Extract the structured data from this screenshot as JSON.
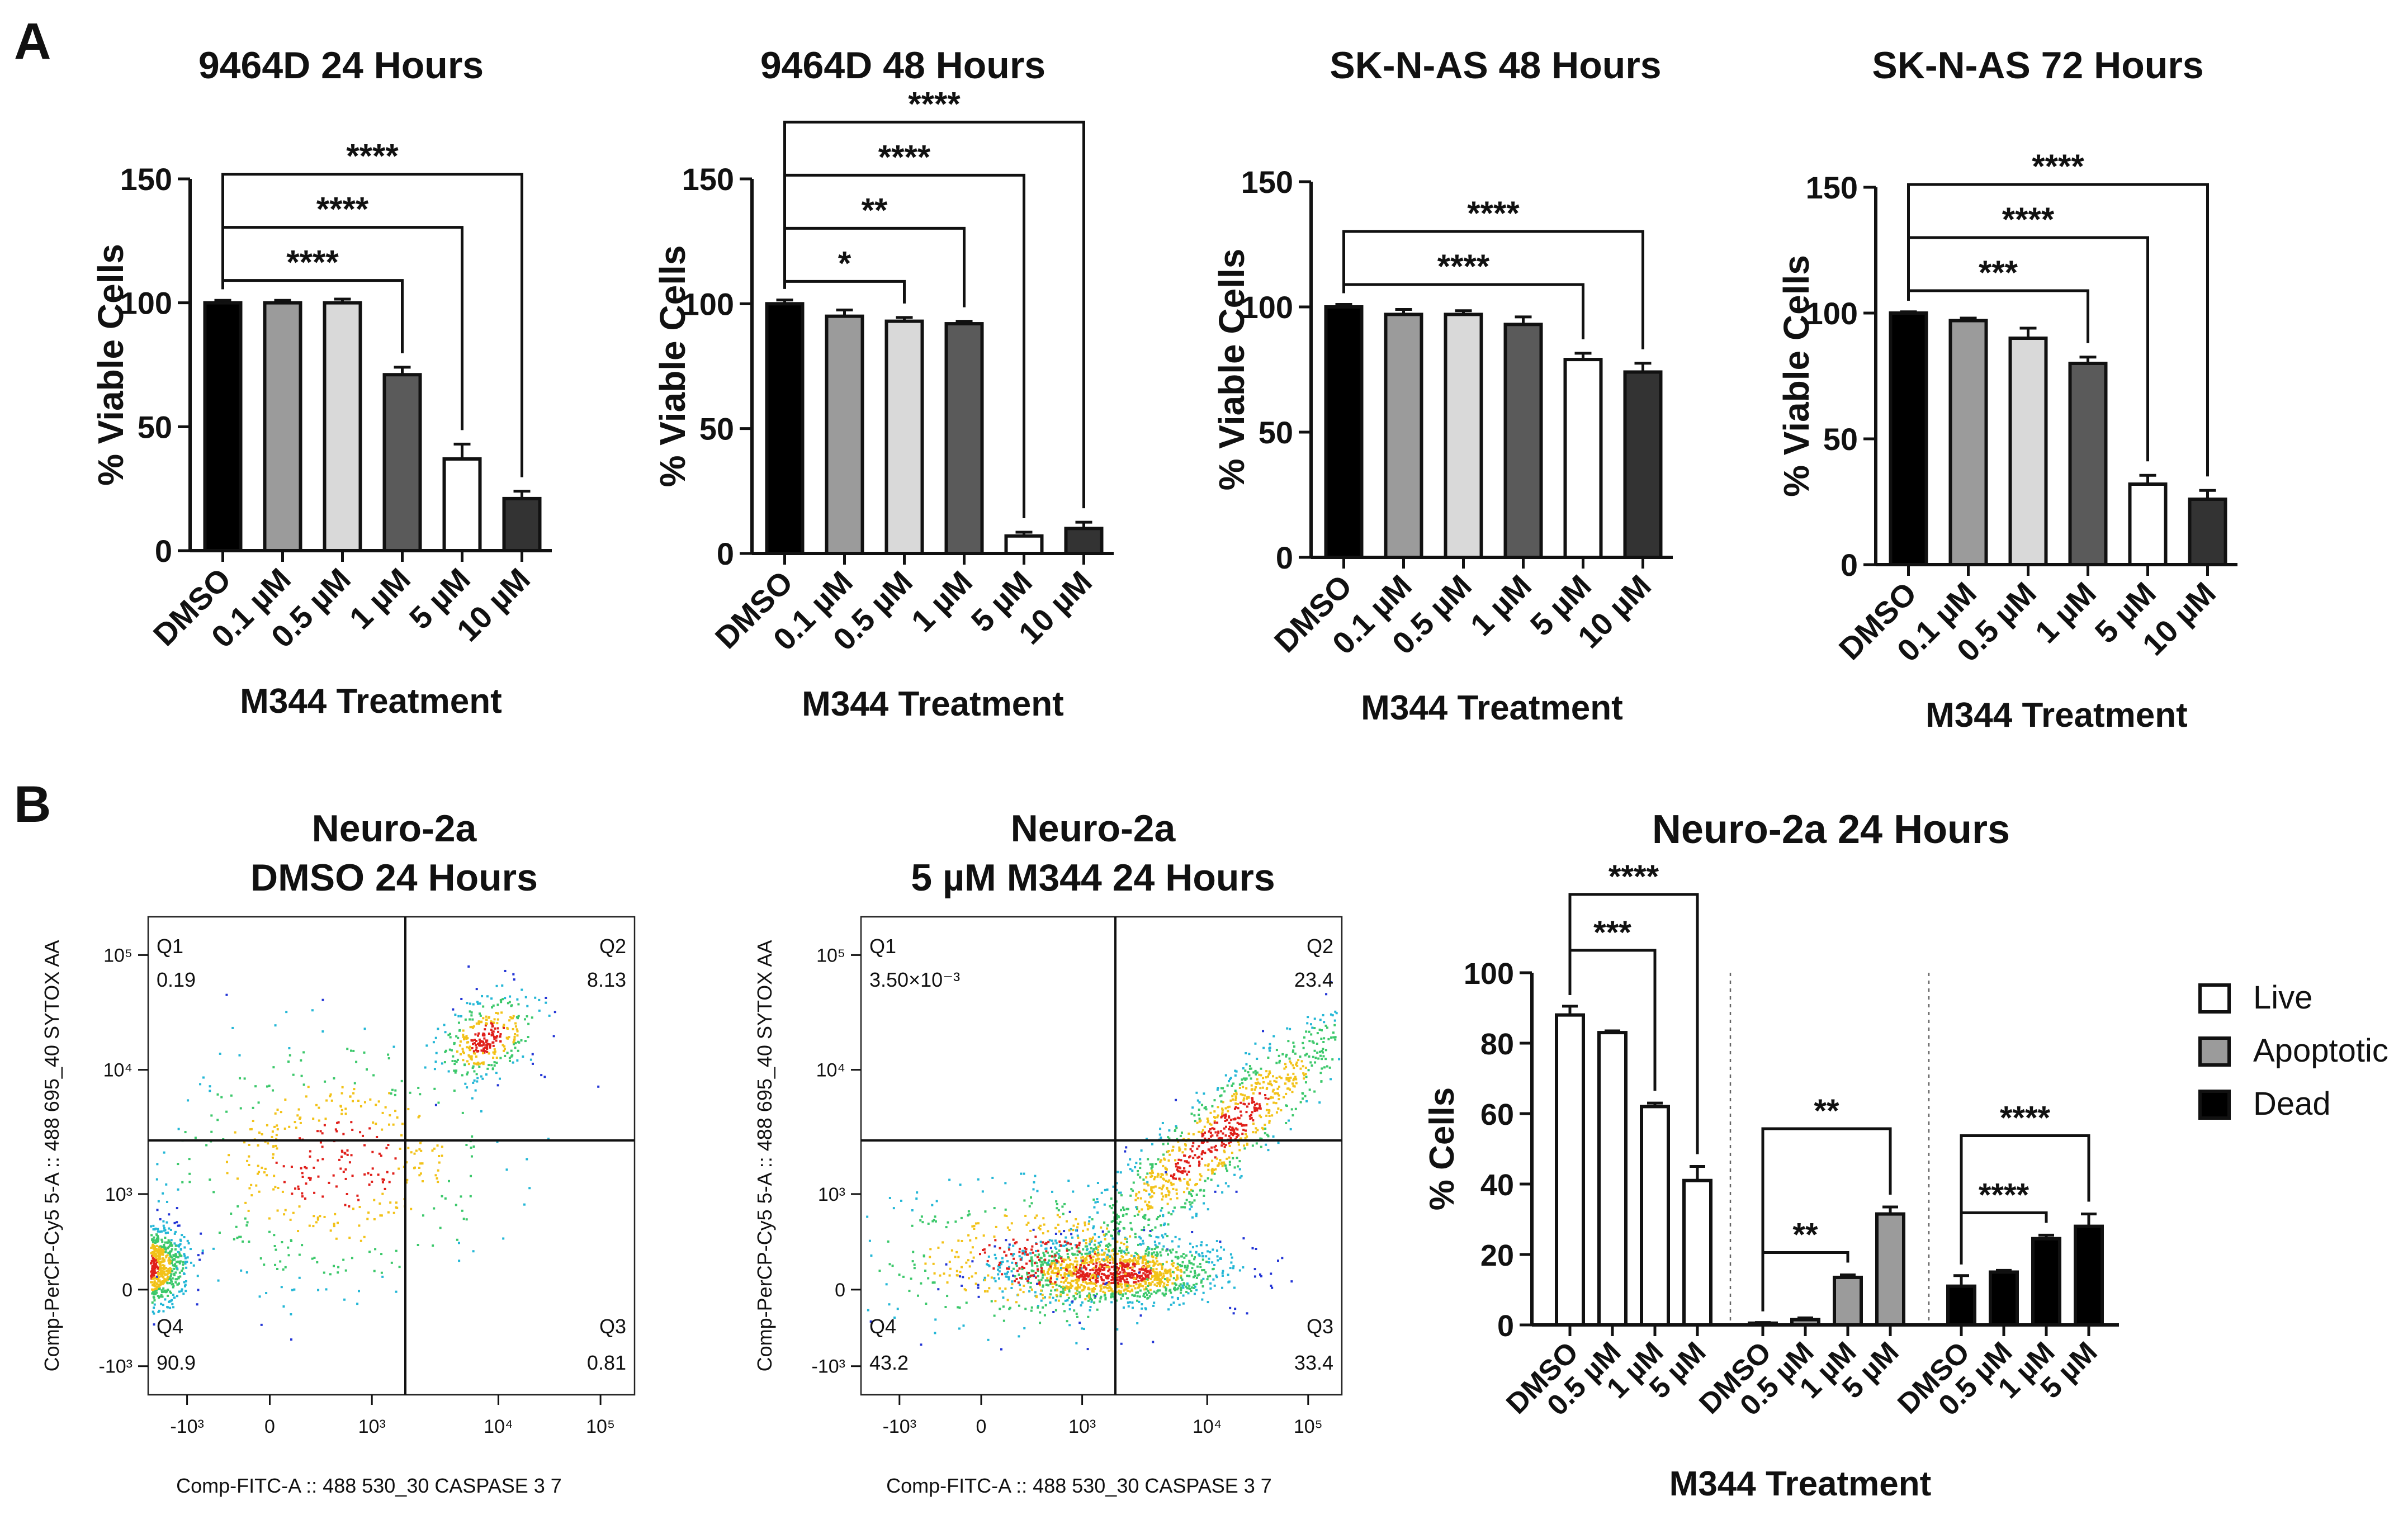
{
  "panel_labels": {
    "a": "A",
    "b": "B"
  },
  "colors": {
    "DMSO": "#000000",
    "0.1 µM": "#9b9b9b",
    "0.5 µM": "#d9d9d9",
    "1 µM": "#5a5a5a",
    "5 µM": "#ffffff",
    "10 µM": "#333333",
    "live": "#ffffff",
    "apoptotic": "#9b9b9b",
    "dead": "#000000"
  },
  "chart_data": [
    {
      "type": "bar",
      "title": "9464D 24 Hours",
      "xlabel": "M344 Treatment",
      "ylabel": "% Viable Cells",
      "ylim": [
        0,
        150
      ],
      "yticks": [
        0,
        50,
        100,
        150
      ],
      "categories": [
        "DMSO",
        "0.1 µM",
        "0.5 µM",
        "1 µM",
        "5 µM",
        "10 µM"
      ],
      "values": [
        100,
        100,
        100,
        71,
        37,
        21
      ],
      "errors": [
        1,
        1,
        1.5,
        3,
        6,
        3
      ],
      "significance": [
        {
          "from": 0,
          "to": 3,
          "label": "****"
        },
        {
          "from": 0,
          "to": 4,
          "label": "****"
        },
        {
          "from": 0,
          "to": 5,
          "label": "****"
        }
      ]
    },
    {
      "type": "bar",
      "title": "9464D 48 Hours",
      "xlabel": "M344 Treatment",
      "ylabel": "% Viable Cells",
      "ylim": [
        0,
        150
      ],
      "yticks": [
        0,
        50,
        100,
        150
      ],
      "categories": [
        "DMSO",
        "0.1 µM",
        "0.5 µM",
        "1 µM",
        "5 µM",
        "10 µM"
      ],
      "values": [
        100,
        95,
        93,
        92,
        7,
        10
      ],
      "errors": [
        1.5,
        2.5,
        1.5,
        1,
        1.5,
        2.5
      ],
      "significance": [
        {
          "from": 0,
          "to": 2,
          "label": "*"
        },
        {
          "from": 0,
          "to": 3,
          "label": "**"
        },
        {
          "from": 0,
          "to": 4,
          "label": "****"
        },
        {
          "from": 0,
          "to": 5,
          "label": "****"
        }
      ]
    },
    {
      "type": "bar",
      "title": "SK-N-AS 48 Hours",
      "xlabel": "M344 Treatment",
      "ylabel": "% Viable Cells",
      "ylim": [
        0,
        150
      ],
      "yticks": [
        0,
        50,
        100,
        150
      ],
      "categories": [
        "DMSO",
        "0.1 µM",
        "0.5 µM",
        "1 µM",
        "5 µM",
        "10 µM"
      ],
      "values": [
        100,
        97,
        97,
        93,
        79,
        74
      ],
      "errors": [
        1,
        2,
        1.5,
        3,
        2.5,
        3.5
      ],
      "significance": [
        {
          "from": 0,
          "to": 4,
          "label": "****"
        },
        {
          "from": 0,
          "to": 5,
          "label": "****"
        }
      ]
    },
    {
      "type": "bar",
      "title": "SK-N-AS 72 Hours",
      "xlabel": "M344 Treatment",
      "ylabel": "% Viable Cells",
      "ylim": [
        0,
        150
      ],
      "yticks": [
        0,
        50,
        100,
        150
      ],
      "categories": [
        "DMSO",
        "0.1 µM",
        "0.5 µM",
        "1 µM",
        "5 µM",
        "10 µM"
      ],
      "values": [
        100,
        97,
        90,
        80,
        32,
        26
      ],
      "errors": [
        0.5,
        1,
        4,
        2.5,
        3.5,
        3.5
      ],
      "significance": [
        {
          "from": 0,
          "to": 3,
          "label": "***"
        },
        {
          "from": 0,
          "to": 4,
          "label": "****"
        },
        {
          "from": 0,
          "to": 5,
          "label": "****"
        }
      ]
    },
    {
      "type": "scatter",
      "title_lines": [
        "Neuro-2a",
        "DMSO 24 Hours"
      ],
      "xlabel": "Comp-FITC-A :: 488 530_30 CASPASE 3 7",
      "ylabel": "Comp-PerCP-Cy5 5-A :: 488 695_40 SYTOX AA",
      "xticks": [
        "-10³",
        "0",
        "10³",
        "10⁴",
        "10⁵"
      ],
      "yticks": [
        "10⁵",
        "10⁴",
        "10³",
        "0",
        "-10³"
      ],
      "quadrants": [
        {
          "name": "Q1",
          "value": "0.19"
        },
        {
          "name": "Q2",
          "value": "8.13"
        },
        {
          "name": "Q3",
          "value": "0.81"
        },
        {
          "name": "Q4",
          "value": "90.9"
        }
      ]
    },
    {
      "type": "scatter",
      "title_lines": [
        "Neuro-2a",
        "5 µM M344 24 Hours"
      ],
      "xlabel": "Comp-FITC-A :: 488 530_30 CASPASE 3 7",
      "ylabel": "Comp-PerCP-Cy5 5-A :: 488 695_40 SYTOX AA",
      "xticks": [
        "-10³",
        "0",
        "10³",
        "10⁴",
        "10⁵"
      ],
      "yticks": [
        "10⁵",
        "10⁴",
        "10³",
        "0",
        "-10³"
      ],
      "quadrants": [
        {
          "name": "Q1",
          "value": "3.50×10⁻³"
        },
        {
          "name": "Q2",
          "value": "23.4"
        },
        {
          "name": "Q3",
          "value": "33.4"
        },
        {
          "name": "Q4",
          "value": "43.2"
        }
      ]
    },
    {
      "type": "bar",
      "title": "Neuro-2a 24 Hours",
      "xlabel": "M344 Treatment",
      "ylabel": "% Cells",
      "ylim": [
        0,
        100
      ],
      "yticks": [
        0,
        20,
        40,
        60,
        80,
        100
      ],
      "categories": [
        "DMSO",
        "0.5 µM",
        "1 µM",
        "5 µM"
      ],
      "legend": [
        "Live",
        "Apoptotic",
        "Dead"
      ],
      "legend_position": "right",
      "series": [
        {
          "name": "Live",
          "values": [
            88,
            83,
            62,
            41
          ],
          "errors": [
            2.5,
            0.5,
            1,
            4
          ],
          "significance": [
            {
              "from": 0,
              "to": 2,
              "label": "***"
            },
            {
              "from": 0,
              "to": 3,
              "label": "****"
            }
          ]
        },
        {
          "name": "Apoptotic",
          "values": [
            0.5,
            1.5,
            13.5,
            31.5
          ],
          "errors": [
            0.2,
            0.5,
            0.7,
            2
          ],
          "significance": [
            {
              "from": 0,
              "to": 2,
              "label": "**"
            },
            {
              "from": 0,
              "to": 3,
              "label": "**"
            }
          ]
        },
        {
          "name": "Dead",
          "values": [
            11,
            15,
            24.5,
            28
          ],
          "errors": [
            3,
            0.5,
            1,
            3.5
          ],
          "significance": [
            {
              "from": 0,
              "to": 2,
              "label": "****"
            },
            {
              "from": 0,
              "to": 3,
              "label": "****"
            }
          ]
        }
      ]
    }
  ]
}
